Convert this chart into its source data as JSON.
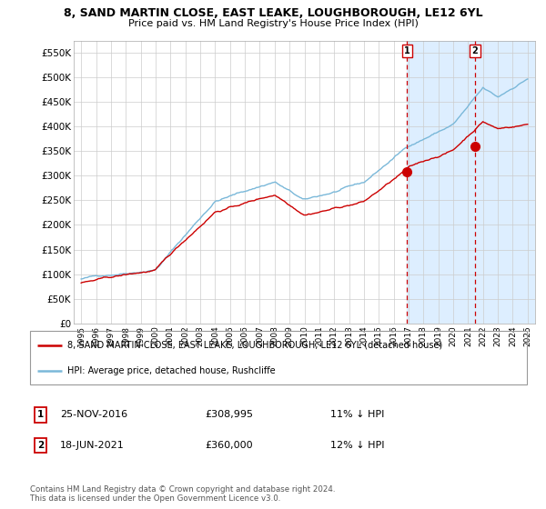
{
  "title": "8, SAND MARTIN CLOSE, EAST LEAKE, LOUGHBOROUGH, LE12 6YL",
  "subtitle": "Price paid vs. HM Land Registry's House Price Index (HPI)",
  "legend_line1": "8, SAND MARTIN CLOSE, EAST LEAKE, LOUGHBOROUGH, LE12 6YL (detached house)",
  "legend_line2": "HPI: Average price, detached house, Rushcliffe",
  "annotation1_label": "1",
  "annotation1_date": "25-NOV-2016",
  "annotation1_price": "£308,995",
  "annotation1_hpi": "11% ↓ HPI",
  "annotation2_label": "2",
  "annotation2_date": "18-JUN-2021",
  "annotation2_price": "£360,000",
  "annotation2_hpi": "12% ↓ HPI",
  "annotation1_year": 2016.9,
  "annotation2_year": 2021.46,
  "annotation1_value": 308995,
  "annotation2_value": 360000,
  "ylim": [
    0,
    575000
  ],
  "yticks": [
    0,
    50000,
    100000,
    150000,
    200000,
    250000,
    300000,
    350000,
    400000,
    450000,
    500000,
    550000
  ],
  "ytick_labels": [
    "£0",
    "£50K",
    "£100K",
    "£150K",
    "£200K",
    "£250K",
    "£300K",
    "£350K",
    "£400K",
    "£450K",
    "£500K",
    "£550K"
  ],
  "xlim_start": 1994.5,
  "xlim_end": 2025.5,
  "xtick_years": [
    1995,
    1996,
    1997,
    1998,
    1999,
    2000,
    2001,
    2002,
    2003,
    2004,
    2005,
    2006,
    2007,
    2008,
    2009,
    2010,
    2011,
    2012,
    2013,
    2014,
    2015,
    2016,
    2017,
    2018,
    2019,
    2020,
    2021,
    2022,
    2023,
    2024,
    2025
  ],
  "hpi_color": "#7ab8d9",
  "price_color": "#cc0000",
  "bg_color": "#ffffff",
  "plot_bg_color": "#ffffff",
  "grid_color": "#cccccc",
  "highlight_bg": "#ddeeff",
  "footer_text": "Contains HM Land Registry data © Crown copyright and database right 2024.\nThis data is licensed under the Open Government Licence v3.0."
}
